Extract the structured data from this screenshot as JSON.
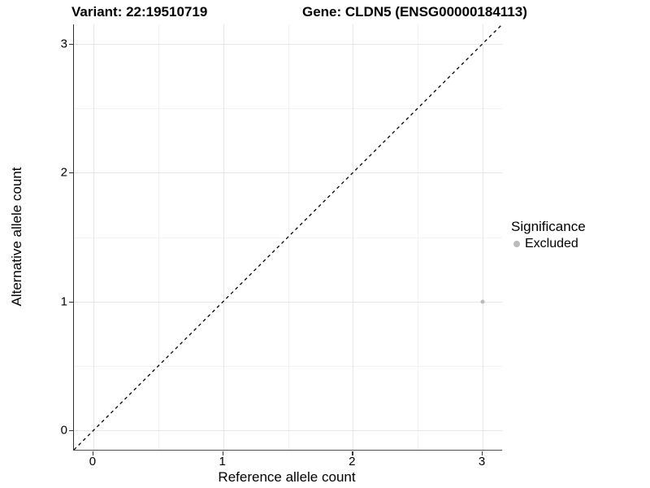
{
  "chart_data": {
    "type": "scatter",
    "titles": {
      "left": "Variant: 22:19510719",
      "right": "Gene: CLDN5 (ENSG00000184113)"
    },
    "xlabel": "Reference allele count",
    "ylabel": "Alternative allele count",
    "xlim": [
      -0.15,
      3.15
    ],
    "ylim": [
      -0.15,
      3.15
    ],
    "xticks": [
      0,
      1,
      2,
      3
    ],
    "yticks": [
      0,
      1,
      2,
      3
    ],
    "minor_gridlines_x": [
      0.5,
      1.5,
      2.5
    ],
    "minor_gridlines_y": [
      0.5,
      1.5,
      2.5
    ],
    "grid": "major+minor",
    "identity_line": {
      "slope": 1,
      "intercept": 0,
      "style": "dashed",
      "color": "#000000"
    },
    "series": [
      {
        "name": "Excluded",
        "color": "#bcbcbc",
        "points": [
          {
            "x": 3,
            "y": 1
          }
        ]
      }
    ],
    "legend": {
      "title": "Significance",
      "position": "right",
      "items": [
        {
          "label": "Excluded",
          "color": "#bcbcbc"
        }
      ]
    }
  },
  "colors": {
    "grid_major": "#e6e6e6",
    "grid_minor": "#f2f2f2",
    "axis_line": "#333333",
    "text": "#000000"
  }
}
